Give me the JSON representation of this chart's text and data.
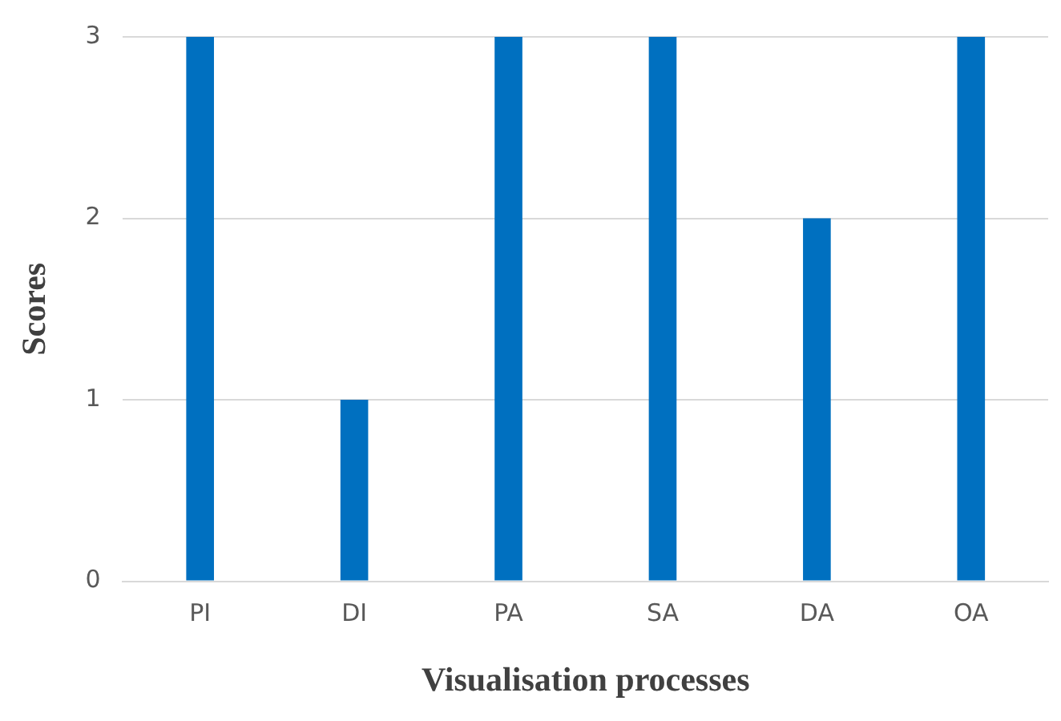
{
  "chart_data": {
    "type": "bar",
    "xlabel": "Visualisation processes",
    "ylabel": "Scores",
    "categories": [
      "PI",
      "DI",
      "PA",
      "SA",
      "DA",
      "OA"
    ],
    "values": [
      3,
      1,
      3,
      3,
      2,
      3
    ],
    "color": "#0070c0",
    "ylim": [
      0,
      3
    ],
    "yticks": [
      0,
      1,
      2,
      3
    ],
    "grid": "y",
    "legend": false
  }
}
